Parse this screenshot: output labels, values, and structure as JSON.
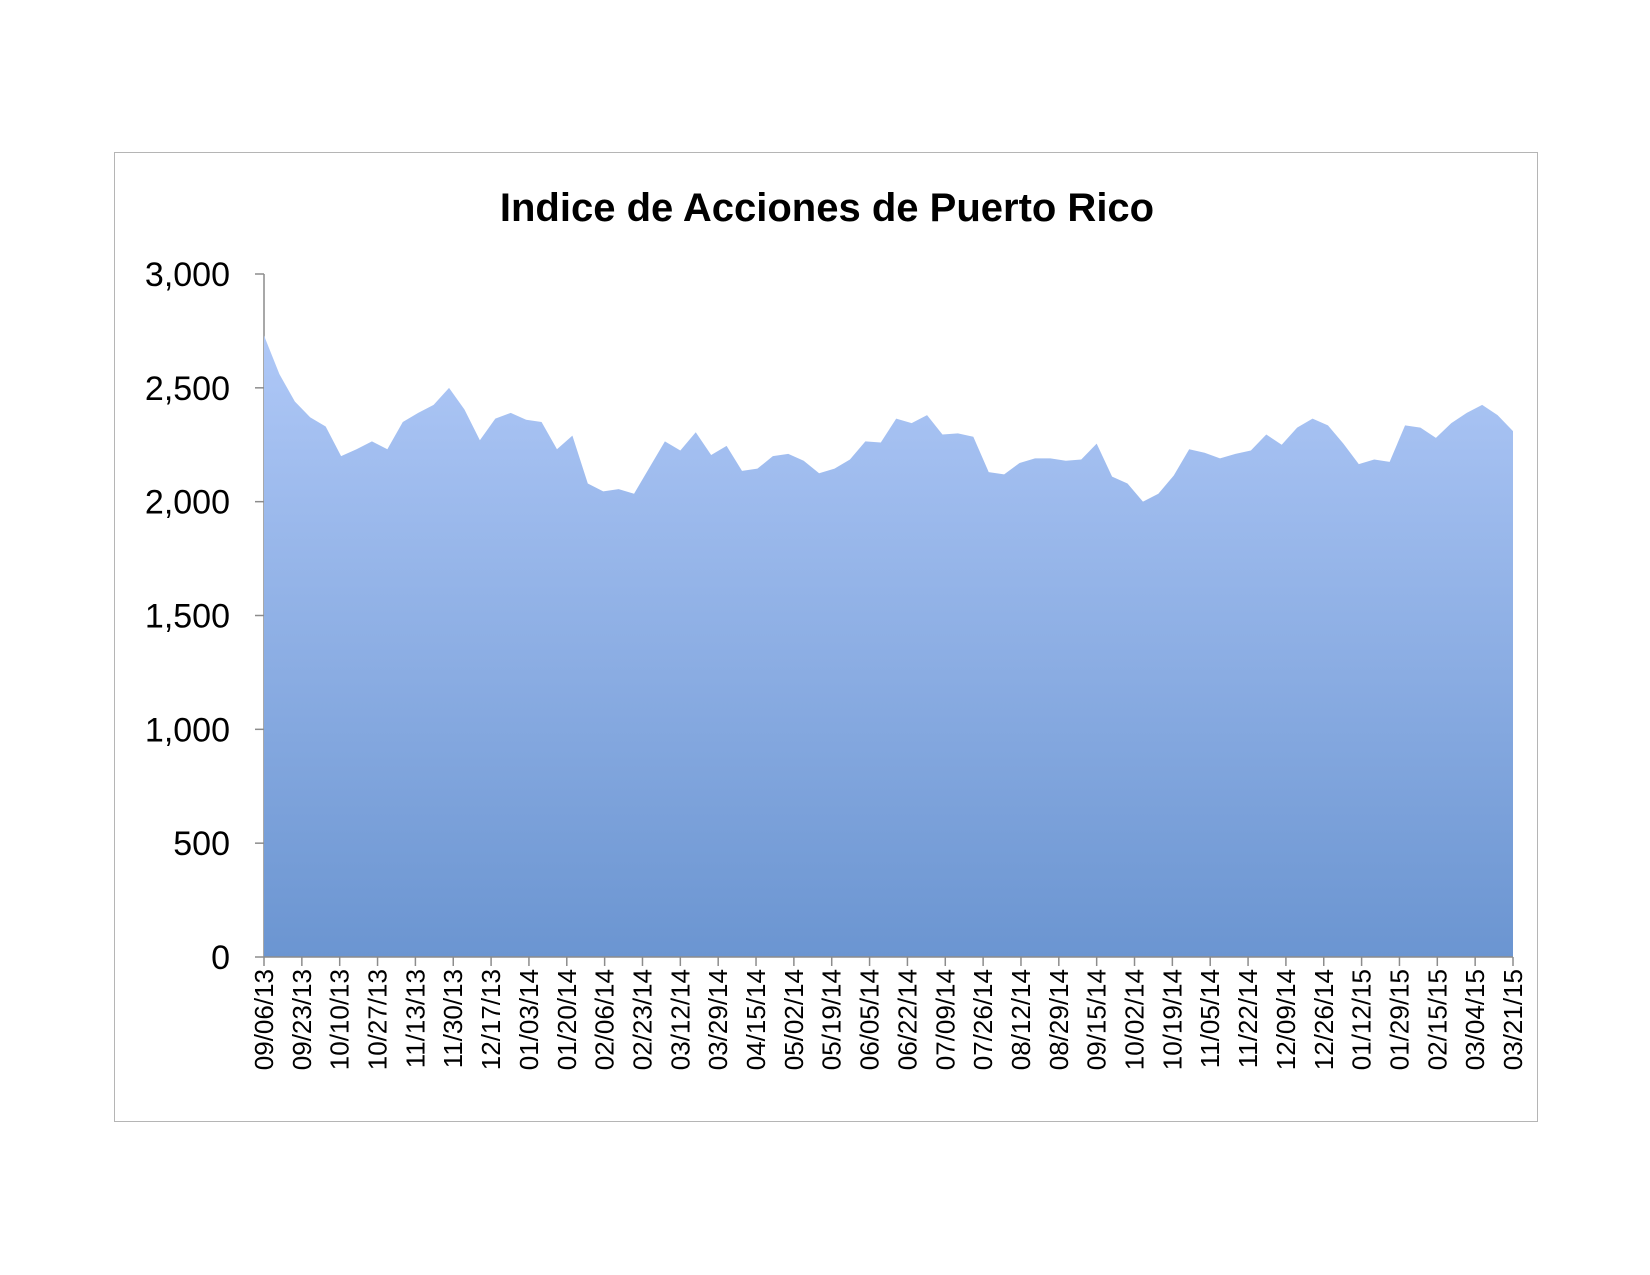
{
  "chart_data": {
    "type": "area",
    "title": "Indice de Acciones de Puerto Rico",
    "xlabel": "",
    "ylabel": "",
    "ylim": [
      0,
      3000
    ],
    "y_ticks": [
      0,
      500,
      1000,
      1500,
      2000,
      2500,
      3000
    ],
    "y_tick_labels": [
      "0",
      "500",
      "1,000",
      "1,500",
      "2,000",
      "2,500",
      "3,000"
    ],
    "x_tick_labels": [
      "09/06/13",
      "09/23/13",
      "10/10/13",
      "10/27/13",
      "11/13/13",
      "11/30/13",
      "12/17/13",
      "01/03/14",
      "01/20/14",
      "02/06/14",
      "02/23/14",
      "03/12/14",
      "03/29/14",
      "04/15/14",
      "05/02/14",
      "05/19/14",
      "06/05/14",
      "06/22/14",
      "07/09/14",
      "07/26/14",
      "08/12/14",
      "08/29/14",
      "09/15/14",
      "10/02/14",
      "10/19/14",
      "11/05/14",
      "11/22/14",
      "12/09/14",
      "12/26/14",
      "01/12/15",
      "01/29/15",
      "02/15/15",
      "03/04/15",
      "03/21/15"
    ],
    "grid": false,
    "legend": "none",
    "fill_color_top": "#afc8f7",
    "fill_color_bottom": "#6b95d1",
    "values": [
      2730,
      2560,
      2440,
      2370,
      2330,
      2200,
      2230,
      2265,
      2230,
      2350,
      2390,
      2425,
      2500,
      2405,
      2270,
      2365,
      2390,
      2360,
      2350,
      2230,
      2290,
      2080,
      2045,
      2055,
      2035,
      2150,
      2265,
      2225,
      2305,
      2205,
      2245,
      2135,
      2145,
      2200,
      2210,
      2180,
      2125,
      2145,
      2185,
      2265,
      2260,
      2365,
      2345,
      2380,
      2295,
      2300,
      2285,
      2130,
      2120,
      2170,
      2190,
      2190,
      2180,
      2185,
      2255,
      2110,
      2080,
      2000,
      2035,
      2115,
      2230,
      2215,
      2190,
      2210,
      2225,
      2295,
      2250,
      2325,
      2365,
      2335,
      2255,
      2165,
      2185,
      2175,
      2335,
      2325,
      2280,
      2345,
      2390,
      2425,
      2380,
      2310
    ]
  }
}
